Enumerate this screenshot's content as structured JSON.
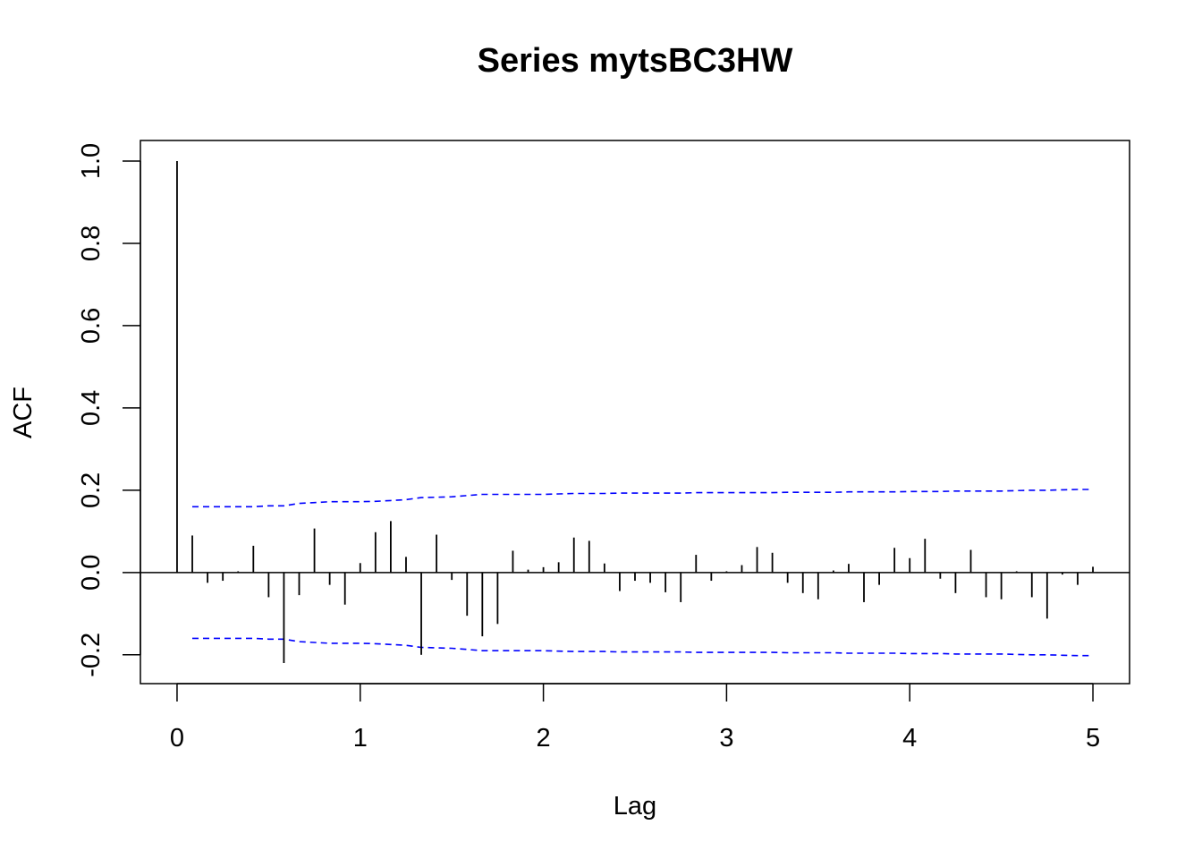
{
  "chart_data": {
    "type": "bar",
    "title": "Series  mytsBC3HW",
    "xlabel": "Lag",
    "ylabel": "ACF",
    "xlim": [
      -0.2,
      5.2
    ],
    "ylim": [
      -0.27,
      1.05
    ],
    "x_ticks": [
      0,
      1,
      2,
      3,
      4,
      5
    ],
    "y_ticks": [
      -0.2,
      0.0,
      0.2,
      0.4,
      0.6,
      0.8,
      1.0
    ],
    "y_tick_labels": [
      "-0.2",
      "0.0",
      "0.2",
      "0.4",
      "0.6",
      "0.8",
      "1.0"
    ],
    "x_tick_labels": [
      "0",
      "1",
      "2",
      "3",
      "4",
      "5"
    ],
    "grid": false,
    "legend": "none",
    "colors": {
      "bars": "#000000",
      "confidence": "#0000ff",
      "zero_line": "#000000"
    },
    "lag_step": 0.083333,
    "values": [
      1.0,
      0.09,
      -0.025,
      -0.02,
      0.003,
      0.065,
      -0.06,
      -0.22,
      -0.055,
      0.107,
      -0.03,
      -0.078,
      0.023,
      0.098,
      0.125,
      0.038,
      -0.2,
      0.092,
      -0.018,
      -0.105,
      -0.155,
      -0.125,
      0.053,
      0.007,
      0.013,
      0.025,
      0.085,
      0.077,
      0.022,
      -0.045,
      -0.02,
      -0.025,
      -0.048,
      -0.072,
      0.043,
      -0.02,
      0.003,
      0.018,
      0.062,
      0.048,
      -0.025,
      -0.05,
      -0.065,
      0.005,
      0.021,
      -0.072,
      -0.03,
      0.06,
      0.035,
      0.082,
      -0.015,
      -0.05,
      0.055,
      -0.06,
      -0.065,
      0.003,
      -0.06,
      -0.112,
      -0.005,
      -0.03,
      0.014
    ],
    "confidence_upper": [
      0.16,
      0.16,
      0.16,
      0.16,
      0.16,
      0.162,
      0.162,
      0.168,
      0.17,
      0.172,
      0.172,
      0.172,
      0.173,
      0.175,
      0.177,
      0.182,
      0.183,
      0.184,
      0.187,
      0.19,
      0.19,
      0.19,
      0.19,
      0.19,
      0.191,
      0.192,
      0.192,
      0.192,
      0.193,
      0.193,
      0.193,
      0.193,
      0.193,
      0.194,
      0.194,
      0.194,
      0.194,
      0.194,
      0.194,
      0.195,
      0.195,
      0.195,
      0.195,
      0.196,
      0.196,
      0.196,
      0.196,
      0.197,
      0.197,
      0.197,
      0.198,
      0.198,
      0.198,
      0.198,
      0.199,
      0.2,
      0.2,
      0.201,
      0.202,
      0.202
    ]
  }
}
